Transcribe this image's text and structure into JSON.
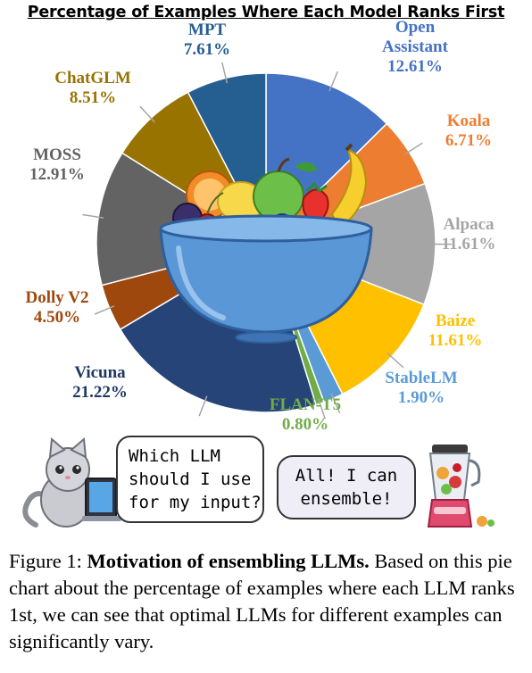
{
  "chart_data": {
    "type": "pie",
    "title": "Percentage of Examples Where Each Model Ranks First",
    "slices": [
      {
        "label_lines": [
          "Open",
          "Assistant"
        ],
        "value": 12.61,
        "value_label": "12.61%",
        "color": "#4472c4"
      },
      {
        "label_lines": [
          "Koala"
        ],
        "value": 6.71,
        "value_label": "6.71%",
        "color": "#ed7d31"
      },
      {
        "label_lines": [
          "Alpaca"
        ],
        "value": 11.61,
        "value_label": "11.61%",
        "color": "#a5a5a5"
      },
      {
        "label_lines": [
          "Baize"
        ],
        "value": 11.61,
        "value_label": "11.61%",
        "color": "#ffc000"
      },
      {
        "label_lines": [
          "StableLM"
        ],
        "value": 1.9,
        "value_label": "1.90%",
        "color": "#5b9bd5"
      },
      {
        "label_lines": [
          "FLAN-T5"
        ],
        "value": 0.8,
        "value_label": "0.80%",
        "color": "#70ad47"
      },
      {
        "label_lines": [
          "Vicuna"
        ],
        "value": 21.22,
        "value_label": "21.22%",
        "color": "#264478"
      },
      {
        "label_lines": [
          "Dolly V2"
        ],
        "value": 4.5,
        "value_label": "4.50%",
        "color": "#9e480e"
      },
      {
        "label_lines": [
          "MOSS"
        ],
        "value": 12.91,
        "value_label": "12.91%",
        "color": "#636363"
      },
      {
        "label_lines": [
          "ChatGLM"
        ],
        "value": 8.51,
        "value_label": "8.51%",
        "color": "#997300"
      },
      {
        "label_lines": [
          "MPT"
        ],
        "value": 7.61,
        "value_label": "7.61%",
        "color": "#255e91"
      }
    ]
  },
  "speech": {
    "left_lines": [
      "Which LLM",
      "should I use",
      "for my input?"
    ],
    "right_lines": [
      "All! I can",
      "ensemble!"
    ]
  },
  "caption": {
    "prefix": "Figure 1: ",
    "bold": "Motivation of ensembling LLMs.",
    "rest": " Based on this pie chart about the percentage of examples where each LLM ranks 1st, we can see that optimal LLMs for different examples can significantly vary."
  }
}
